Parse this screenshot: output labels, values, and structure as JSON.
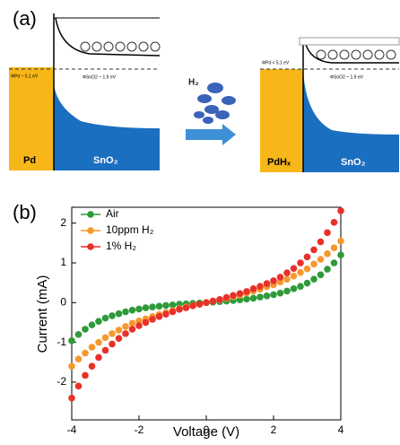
{
  "panel_a": {
    "label": "(a)",
    "left_metal": "Pd",
    "left_oxide": "SnO₂",
    "left_barrier": "ΦPd ~ 5.1 eV",
    "left_gap": "ΦSnO2 ~ 1.9 eV",
    "gas": "H₂",
    "right_metal": "PdHₓ",
    "right_oxide": "SnO₂",
    "right_barrier": "ΦPd < 5.1 eV",
    "right_gap": "ΦSnO2 ~ 1.9 eV"
  },
  "panel_b_label": "(b)",
  "chart_data": {
    "type": "scatter",
    "x_label": "Voltage (V)",
    "y_label": "Current (mA)",
    "x": [
      -4,
      -3.8,
      -3.6,
      -3.4,
      -3.2,
      -3,
      -2.8,
      -2.6,
      -2.4,
      -2.2,
      -2,
      -1.8,
      -1.6,
      -1.4,
      -1.2,
      -1,
      -0.8,
      -0.6,
      -0.4,
      -0.2,
      0,
      0.2,
      0.4,
      0.6,
      0.8,
      1,
      1.2,
      1.4,
      1.6,
      1.8,
      2,
      2.2,
      2.4,
      2.6,
      2.8,
      3,
      3.2,
      3.4,
      3.6,
      3.8,
      4
    ],
    "series": [
      {
        "name": "Air",
        "color": "#2e9a3a",
        "values": [
          -0.96,
          -0.8,
          -0.67,
          -0.56,
          -0.47,
          -0.39,
          -0.33,
          -0.28,
          -0.23,
          -0.19,
          -0.16,
          -0.13,
          -0.11,
          -0.09,
          -0.07,
          -0.06,
          -0.04,
          -0.03,
          -0.02,
          -0.01,
          0,
          0.01,
          0.025,
          0.039,
          0.054,
          0.071,
          0.089,
          0.11,
          0.14,
          0.17,
          0.2,
          0.24,
          0.29,
          0.35,
          0.41,
          0.49,
          0.59,
          0.7,
          0.84,
          1.0,
          1.2
        ]
      },
      {
        "name": "10ppm H₂",
        "color": "#f5992e",
        "values": [
          -1.6,
          -1.42,
          -1.27,
          -1.12,
          -1.0,
          -0.88,
          -0.78,
          -0.69,
          -0.6,
          -0.52,
          -0.46,
          -0.41,
          -0.35,
          -0.3,
          -0.25,
          -0.2,
          -0.15,
          -0.11,
          -0.07,
          -0.04,
          0,
          0.04,
          0.07,
          0.11,
          0.15,
          0.19,
          0.24,
          0.29,
          0.34,
          0.4,
          0.45,
          0.52,
          0.59,
          0.67,
          0.76,
          0.85,
          0.97,
          1.09,
          1.23,
          1.38,
          1.55
        ]
      },
      {
        "name": "1% H₂",
        "color": "#e8312a",
        "values": [
          -2.4,
          -2.1,
          -1.83,
          -1.6,
          -1.38,
          -1.2,
          -1.04,
          -0.9,
          -0.78,
          -0.67,
          -0.58,
          -0.5,
          -0.42,
          -0.35,
          -0.29,
          -0.23,
          -0.17,
          -0.13,
          -0.08,
          -0.04,
          0,
          0.04,
          0.08,
          0.13,
          0.18,
          0.23,
          0.28,
          0.35,
          0.41,
          0.48,
          0.55,
          0.64,
          0.75,
          0.86,
          1.0,
          1.15,
          1.33,
          1.53,
          1.76,
          2.02,
          2.31
        ]
      }
    ],
    "xlim": [
      -4,
      4
    ],
    "xticks": [
      -4,
      -2,
      0,
      2,
      4
    ],
    "ylim": [
      -2.95,
      2.4
    ],
    "yticks": [
      -2,
      -1,
      0,
      1,
      2
    ],
    "legend": "upper-left"
  }
}
